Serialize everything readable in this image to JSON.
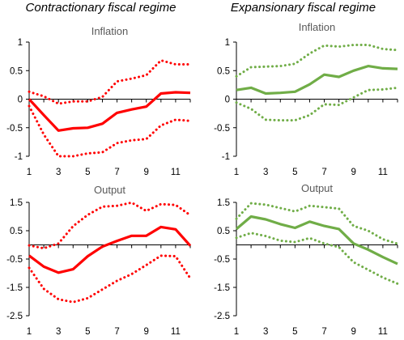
{
  "page": {
    "left_heading": "Contractionary fiscal regime",
    "right_heading": "Expansionary fiscal regime"
  },
  "colors": {
    "contractionary": "#ff0000",
    "expansionary": "#70ad47"
  },
  "chart_data": [
    {
      "type": "line",
      "title": "Inflation",
      "x": [
        1,
        2,
        3,
        4,
        5,
        6,
        7,
        8,
        9,
        10,
        11,
        12
      ],
      "x_ticks": [
        1,
        3,
        5,
        7,
        9,
        11
      ],
      "y_ticks": [
        1,
        0.5,
        0,
        -0.5,
        -1
      ],
      "ylim": [
        -1,
        1
      ],
      "grid": false,
      "series": [
        {
          "style": "solid",
          "values": [
            0,
            -0.28,
            -0.55,
            -0.51,
            -0.5,
            -0.43,
            -0.24,
            -0.18,
            -0.13,
            0.1,
            0.12,
            0.11
          ]
        },
        {
          "style": "dotted",
          "values": [
            0.13,
            0.05,
            -0.08,
            -0.04,
            -0.04,
            0.04,
            0.31,
            0.36,
            0.42,
            0.68,
            0.61,
            0.61
          ]
        },
        {
          "style": "dotted",
          "values": [
            -0.12,
            -0.62,
            -1.0,
            -1.0,
            -0.95,
            -0.93,
            -0.77,
            -0.72,
            -0.7,
            -0.46,
            -0.36,
            -0.38
          ]
        }
      ]
    },
    {
      "type": "line",
      "title": "Inflation",
      "x": [
        1,
        2,
        3,
        4,
        5,
        6,
        7,
        8,
        9,
        10,
        11,
        12
      ],
      "x_ticks": [
        1,
        3,
        5,
        7,
        9,
        11
      ],
      "y_ticks": [
        1,
        0.5,
        0,
        -0.5,
        -1
      ],
      "ylim": [
        -1,
        1
      ],
      "grid": false,
      "series": [
        {
          "style": "solid",
          "values": [
            0.16,
            0.2,
            0.1,
            0.11,
            0.13,
            0.26,
            0.43,
            0.39,
            0.5,
            0.58,
            0.54,
            0.53
          ]
        },
        {
          "style": "dotted",
          "values": [
            0.4,
            0.56,
            0.57,
            0.58,
            0.62,
            0.8,
            0.94,
            0.92,
            0.95,
            0.95,
            0.88,
            0.86
          ]
        },
        {
          "style": "dotted",
          "values": [
            -0.06,
            -0.17,
            -0.36,
            -0.37,
            -0.37,
            -0.28,
            -0.09,
            -0.1,
            0.03,
            0.16,
            0.17,
            0.2
          ]
        }
      ]
    },
    {
      "type": "line",
      "title": "Output",
      "x": [
        1,
        2,
        3,
        4,
        5,
        6,
        7,
        8,
        9,
        10,
        11,
        12
      ],
      "x_ticks": [
        1,
        3,
        5,
        7,
        9,
        11
      ],
      "y_ticks": [
        1.5,
        0.5,
        -0.5,
        -1.5,
        -2.5
      ],
      "ylim": [
        -2.5,
        1.5
      ],
      "grid": false,
      "series": [
        {
          "style": "solid",
          "values": [
            -0.38,
            -0.77,
            -0.98,
            -0.86,
            -0.4,
            -0.06,
            0.14,
            0.32,
            0.32,
            0.63,
            0.55,
            -0.03
          ]
        },
        {
          "style": "dotted",
          "values": [
            -0.02,
            -0.12,
            0.05,
            0.66,
            1.06,
            1.35,
            1.38,
            1.49,
            1.2,
            1.44,
            1.41,
            1.05
          ]
        },
        {
          "style": "dotted",
          "values": [
            -0.81,
            -1.55,
            -1.92,
            -2.02,
            -1.88,
            -1.57,
            -1.27,
            -1.03,
            -0.71,
            -0.38,
            -0.4,
            -1.18
          ]
        }
      ]
    },
    {
      "type": "line",
      "title": "Output",
      "x": [
        1,
        2,
        3,
        4,
        5,
        6,
        7,
        8,
        9,
        10,
        11,
        12
      ],
      "x_ticks": [
        1,
        3,
        5,
        7,
        9,
        11
      ],
      "y_ticks": [
        1.5,
        0.5,
        -0.5,
        -1.5,
        -2.5
      ],
      "ylim": [
        -2.5,
        1.5
      ],
      "grid": false,
      "series": [
        {
          "style": "solid",
          "values": [
            0.56,
            1.0,
            0.9,
            0.73,
            0.6,
            0.82,
            0.67,
            0.56,
            0.05,
            -0.17,
            -0.43,
            -0.67
          ]
        },
        {
          "style": "dotted",
          "values": [
            0.92,
            1.47,
            1.42,
            1.3,
            1.18,
            1.38,
            1.33,
            1.28,
            0.67,
            0.5,
            0.2,
            0.04
          ]
        },
        {
          "style": "dotted",
          "values": [
            0.25,
            0.42,
            0.31,
            0.15,
            0.1,
            0.24,
            0.05,
            -0.08,
            -0.61,
            -0.88,
            -1.15,
            -1.37
          ]
        }
      ]
    }
  ]
}
